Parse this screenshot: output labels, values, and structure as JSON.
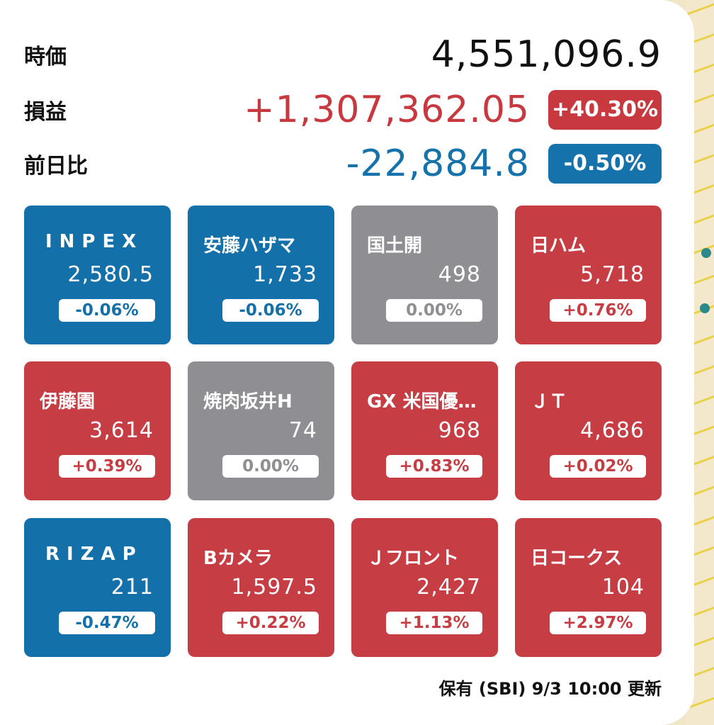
{
  "summary": {
    "market_value_label": "時価",
    "market_value": "4,551,096.9",
    "profit_label": "損益",
    "profit_value": "+1,307,362.05",
    "profit_pct": "+40.30%",
    "day_change_label": "前日比",
    "day_change_value": "-22,884.8",
    "day_change_pct": "-0.50%"
  },
  "colors": {
    "up": "#c63d43",
    "down": "#1470a8",
    "flat": "#8e8e93"
  },
  "tiles": [
    {
      "name": "INPEX",
      "price": "2,580.5",
      "change": "-0.06%",
      "trend": "down"
    },
    {
      "name": "安藤ハザマ",
      "price": "1,733",
      "change": "-0.06%",
      "trend": "down"
    },
    {
      "name": "国土開",
      "price": "498",
      "change": "0.00%",
      "trend": "flat"
    },
    {
      "name": "日ハム",
      "price": "5,718",
      "change": "+0.76%",
      "trend": "up"
    },
    {
      "name": "伊藤園",
      "price": "3,614",
      "change": "+0.39%",
      "trend": "up"
    },
    {
      "name": "焼肉坂井H",
      "price": "74",
      "change": "0.00%",
      "trend": "flat"
    },
    {
      "name": "GX 米国優…",
      "price": "968",
      "change": "+0.83%",
      "trend": "up"
    },
    {
      "name": "ＪＴ",
      "price": "4,686",
      "change": "+0.02%",
      "trend": "up"
    },
    {
      "name": "RIZAP",
      "price": "211",
      "change": "-0.47%",
      "trend": "down"
    },
    {
      "name": "Bカメラ",
      "price": "1,597.5",
      "change": "+0.22%",
      "trend": "up"
    },
    {
      "name": "Ｊフロント",
      "price": "2,427",
      "change": "+1.13%",
      "trend": "up"
    },
    {
      "name": "日コークス",
      "price": "104",
      "change": "+2.97%",
      "trend": "up"
    }
  ],
  "footer": {
    "updated_text": "保有 (SBI) 9/3 10:00 更新"
  }
}
